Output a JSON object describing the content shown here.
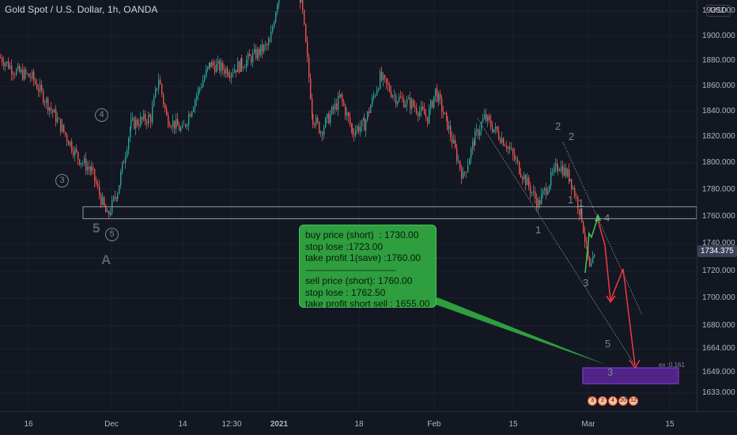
{
  "header": {
    "symbol_title": "Gold Spot / U.S. Dollar, 1h, OANDA",
    "currency_button": "USD"
  },
  "price_axis": {
    "labels": [
      "1920.000",
      "1900.000",
      "1880.000",
      "1860.000",
      "1840.000",
      "1820.000",
      "1800.000",
      "1780.000",
      "1760.000",
      "1740.000",
      "1720.000",
      "1700.000",
      "1680.000",
      "1664.000",
      "1649.000",
      "1633.000"
    ],
    "current_price": "1734.375"
  },
  "time_axis": {
    "labels": [
      "16",
      "Dec",
      "14",
      "12:30",
      "2021",
      "18",
      "Feb",
      "15",
      "Mar",
      "15"
    ]
  },
  "note": {
    "lines_top": [
      "buy price (short)  : 1730.00",
      "stop lose :1723.00",
      "take profit 1(save) :1760.00"
    ],
    "separator": "--------------------------------------",
    "lines_bottom": [
      "sell price (short): 1760.00",
      "stop lose : 1762.50",
      "take profit short sell : 1655.00"
    ]
  },
  "wave_labels": {
    "w4_circle": "4",
    "w3_circle": "3",
    "w5_circle": "5",
    "w5_big": "5",
    "wA": "A",
    "w2_top": "2",
    "w2_right": "2",
    "w1_a": "1",
    "w1_b": "1",
    "w1_low": "1",
    "w3_low": "3",
    "w4_right": "4",
    "w5_right": "5",
    "w3_box": "3",
    "ext_label": "ex :0.161"
  },
  "event_badges": [
    "3",
    "2",
    "4",
    "20",
    "12"
  ],
  "colors": {
    "background": "#131722",
    "up_candle": "#26a69a",
    "down_candle": "#ef5350",
    "note_box": "#2e9e3f",
    "target_zone": "#6a2bb0",
    "projection_red": "#f23645",
    "projection_green": "#43c559"
  },
  "chart_data": {
    "type": "candlestick",
    "title": "Gold Spot / U.S. Dollar, 1h, OANDA",
    "y_range": [
      1625,
      1925
    ],
    "close_path": [
      {
        "x": "Nov 16",
        "y": 1885
      },
      {
        "x": "Nov 18",
        "y": 1875
      },
      {
        "x": "Nov 20",
        "y": 1870
      },
      {
        "x": "Nov 24",
        "y": 1840
      },
      {
        "x": "Nov 26",
        "y": 1810
      },
      {
        "x": "Nov 27",
        "y": 1800
      },
      {
        "x": "Nov 30",
        "y": 1765
      },
      {
        "x": "Dec 1",
        "y": 1785
      },
      {
        "x": "Dec 3",
        "y": 1835
      },
      {
        "x": "Dec 7",
        "y": 1840
      },
      {
        "x": "Dec 9",
        "y": 1870
      },
      {
        "x": "Dec 10",
        "y": 1840
      },
      {
        "x": "Dec 14",
        "y": 1830
      },
      {
        "x": "Dec 16",
        "y": 1860
      },
      {
        "x": "Dec 18",
        "y": 1880
      },
      {
        "x": "Dec 22",
        "y": 1875
      },
      {
        "x": "Dec 24",
        "y": 1880
      },
      {
        "x": "Dec 30",
        "y": 1895
      },
      {
        "x": "Jan 5",
        "y": 1945
      },
      {
        "x": "Jan 6",
        "y": 1930
      },
      {
        "x": "Jan 8",
        "y": 1840
      },
      {
        "x": "Jan 11",
        "y": 1830
      },
      {
        "x": "Jan 12",
        "y": 1855
      },
      {
        "x": "Jan 15",
        "y": 1830
      },
      {
        "x": "Jan 18",
        "y": 1835
      },
      {
        "x": "Jan 20",
        "y": 1870
      },
      {
        "x": "Jan 22",
        "y": 1855
      },
      {
        "x": "Jan 26",
        "y": 1850
      },
      {
        "x": "Jan 28",
        "y": 1840
      },
      {
        "x": "Feb 1",
        "y": 1860
      },
      {
        "x": "Feb 3",
        "y": 1835
      },
      {
        "x": "Feb 4",
        "y": 1795
      },
      {
        "x": "Feb 8",
        "y": 1825
      },
      {
        "x": "Feb 11",
        "y": 1840
      },
      {
        "x": "Feb 15",
        "y": 1820
      },
      {
        "x": "Feb 18",
        "y": 1775
      },
      {
        "x": "Feb 22",
        "y": 1805
      },
      {
        "x": "Feb 24",
        "y": 1795
      },
      {
        "x": "Feb 26",
        "y": 1765
      },
      {
        "x": "Mar 1",
        "y": 1725
      },
      {
        "x": "Mar 2",
        "y": 1735
      }
    ],
    "horizontal_zone": [
      1764,
      1773
    ],
    "target_zone": [
      1640,
      1652
    ],
    "current_price": 1734.375
  }
}
